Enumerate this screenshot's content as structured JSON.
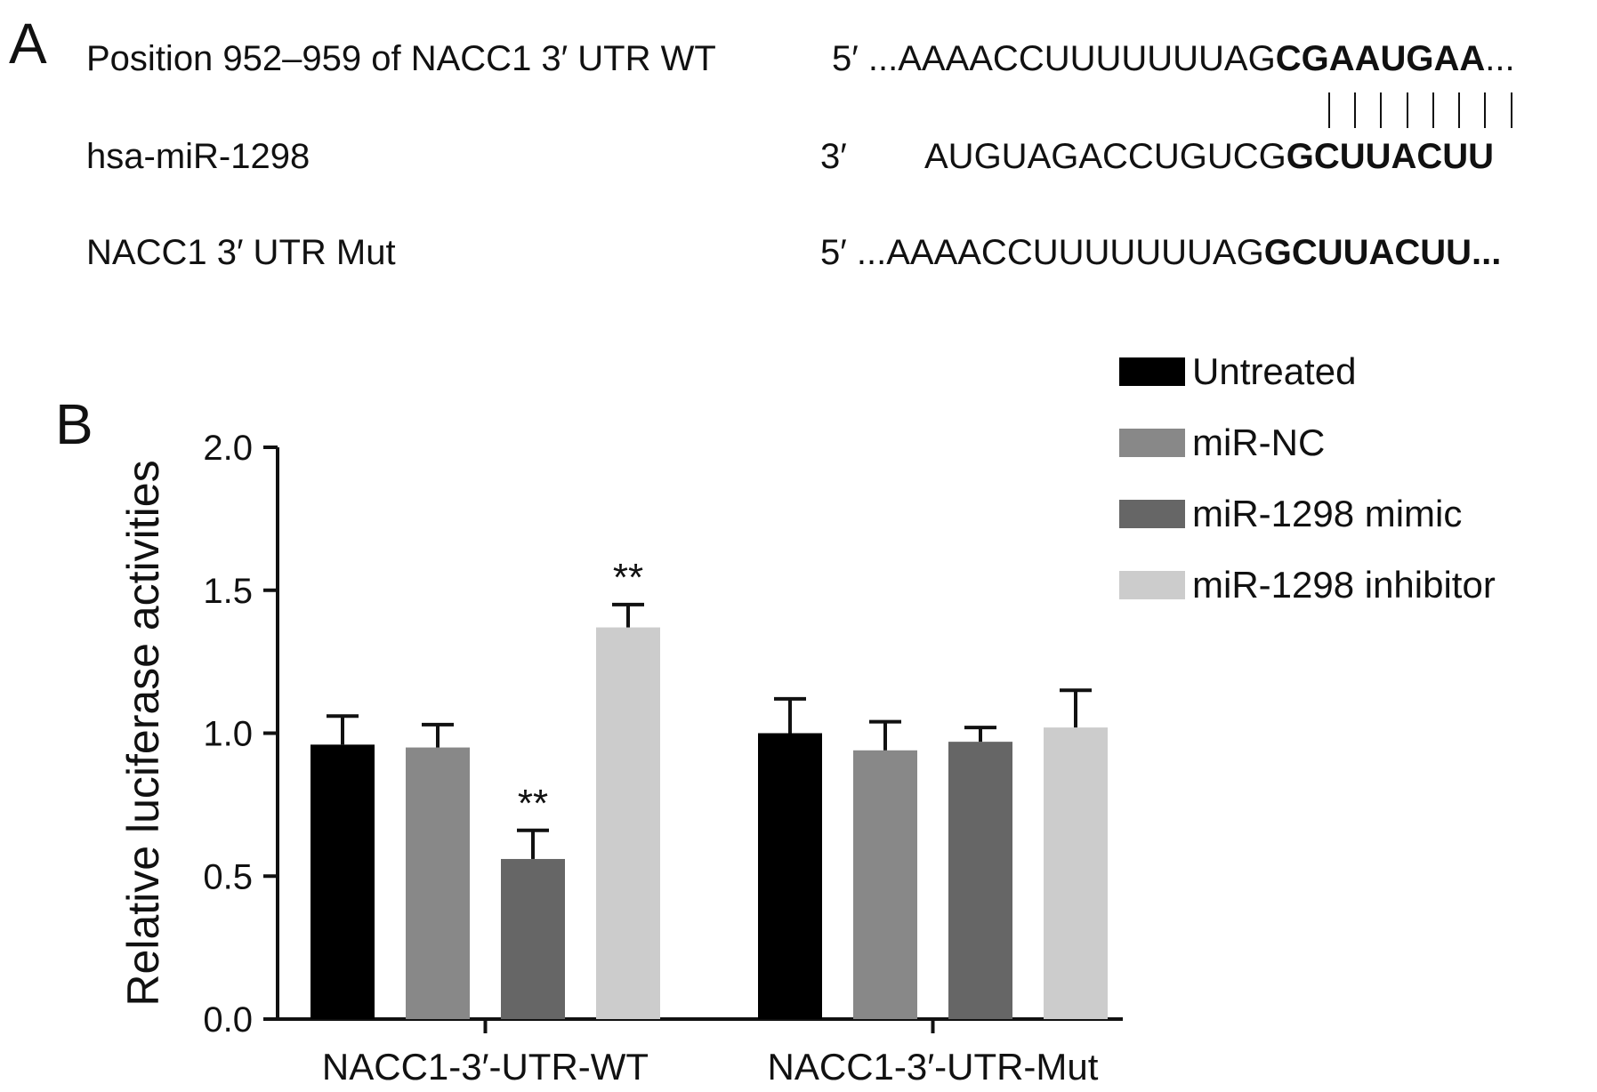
{
  "panel_a": {
    "label": "A",
    "rows": [
      {
        "name": "Position 952–959 of NACC1 3′ UTR WT",
        "end": "5′",
        "seq": "...AAAACCUUUUUUUAG",
        "bold": "CGAAUGAA",
        "tail": "..."
      },
      {
        "name": "hsa-miR-1298",
        "end": "3′",
        "seq": "AUGUAGACCUGUCG",
        "bold": "GCUUACUU",
        "tail": ""
      },
      {
        "name": "NACC1 3′ UTR Mut",
        "end": "5′",
        "seq": "...AAAACCUUUUUUUAG",
        "bold": "GCUUACUU...",
        "tail": ""
      }
    ]
  },
  "panel_b": {
    "label": "B"
  },
  "chart_data": {
    "type": "bar",
    "title": "",
    "xlabel": "",
    "ylabel": "Relative luciferase activities",
    "ylim": [
      0,
      2.0
    ],
    "yticks": [
      "0.0",
      "0.5",
      "1.0",
      "1.5",
      "2.0"
    ],
    "categories": [
      "NACC1-3′-UTR-WT",
      "NACC1-3′-UTR-Mut"
    ],
    "legend_position": "top-right",
    "series": [
      {
        "name": "Untreated",
        "color": "#000000",
        "values": [
          0.96,
          1.0
        ],
        "errors": [
          0.1,
          0.12
        ],
        "annotations": [
          "",
          ""
        ]
      },
      {
        "name": "miR-NC",
        "color": "#888888",
        "values": [
          0.95,
          0.94
        ],
        "errors": [
          0.08,
          0.1
        ],
        "annotations": [
          "",
          ""
        ]
      },
      {
        "name": "miR-1298 mimic",
        "color": "#666666",
        "values": [
          0.56,
          0.97
        ],
        "errors": [
          0.1,
          0.05
        ],
        "annotations": [
          "**",
          ""
        ]
      },
      {
        "name": "miR-1298 inhibitor",
        "color": "#cccccc",
        "values": [
          1.37,
          1.02
        ],
        "errors": [
          0.08,
          0.13
        ],
        "annotations": [
          "**",
          ""
        ]
      }
    ]
  }
}
